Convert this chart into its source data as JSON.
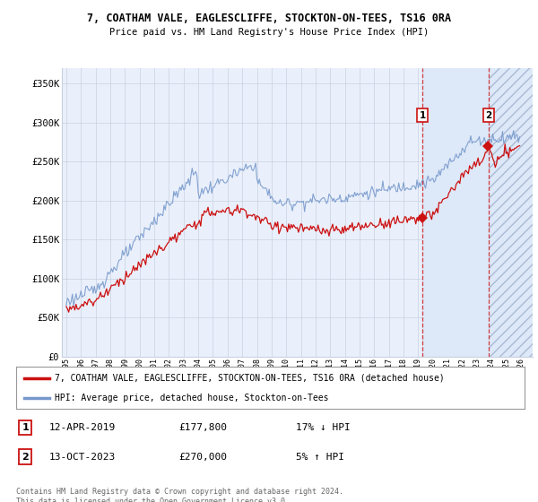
{
  "title1": "7, COATHAM VALE, EAGLESCLIFFE, STOCKTON-ON-TEES, TS16 0RA",
  "title2": "Price paid vs. HM Land Registry's House Price Index (HPI)",
  "ylabel_ticks": [
    "£0",
    "£50K",
    "£100K",
    "£150K",
    "£200K",
    "£250K",
    "£300K",
    "£350K"
  ],
  "ytick_values": [
    0,
    50000,
    100000,
    150000,
    200000,
    250000,
    300000,
    350000
  ],
  "ylim": [
    0,
    370000
  ],
  "xlim_start": 1994.7,
  "xlim_end": 2026.8,
  "hpi_color": "#7799cc",
  "price_color": "#cc1111",
  "vline_color": "#cc1111",
  "shade_color": "#dde8f8",
  "marker1_year": 2019.28,
  "marker2_year": 2023.79,
  "marker1_price": 177800,
  "marker2_price": 270000,
  "legend_line1": "7, COATHAM VALE, EAGLESCLIFFE, STOCKTON-ON-TEES, TS16 0RA (detached house)",
  "legend_line2": "HPI: Average price, detached house, Stockton-on-Tees",
  "ann1_date": "12-APR-2019",
  "ann1_price": "£177,800",
  "ann1_hpi": "17% ↓ HPI",
  "ann2_date": "13-OCT-2023",
  "ann2_price": "£270,000",
  "ann2_hpi": "5% ↑ HPI",
  "footer": "Contains HM Land Registry data © Crown copyright and database right 2024.\nThis data is licensed under the Open Government Licence v3.0.",
  "background_plot": "#eaf0fb",
  "background_fig": "#ffffff",
  "grid_color": "#c8d0e0"
}
